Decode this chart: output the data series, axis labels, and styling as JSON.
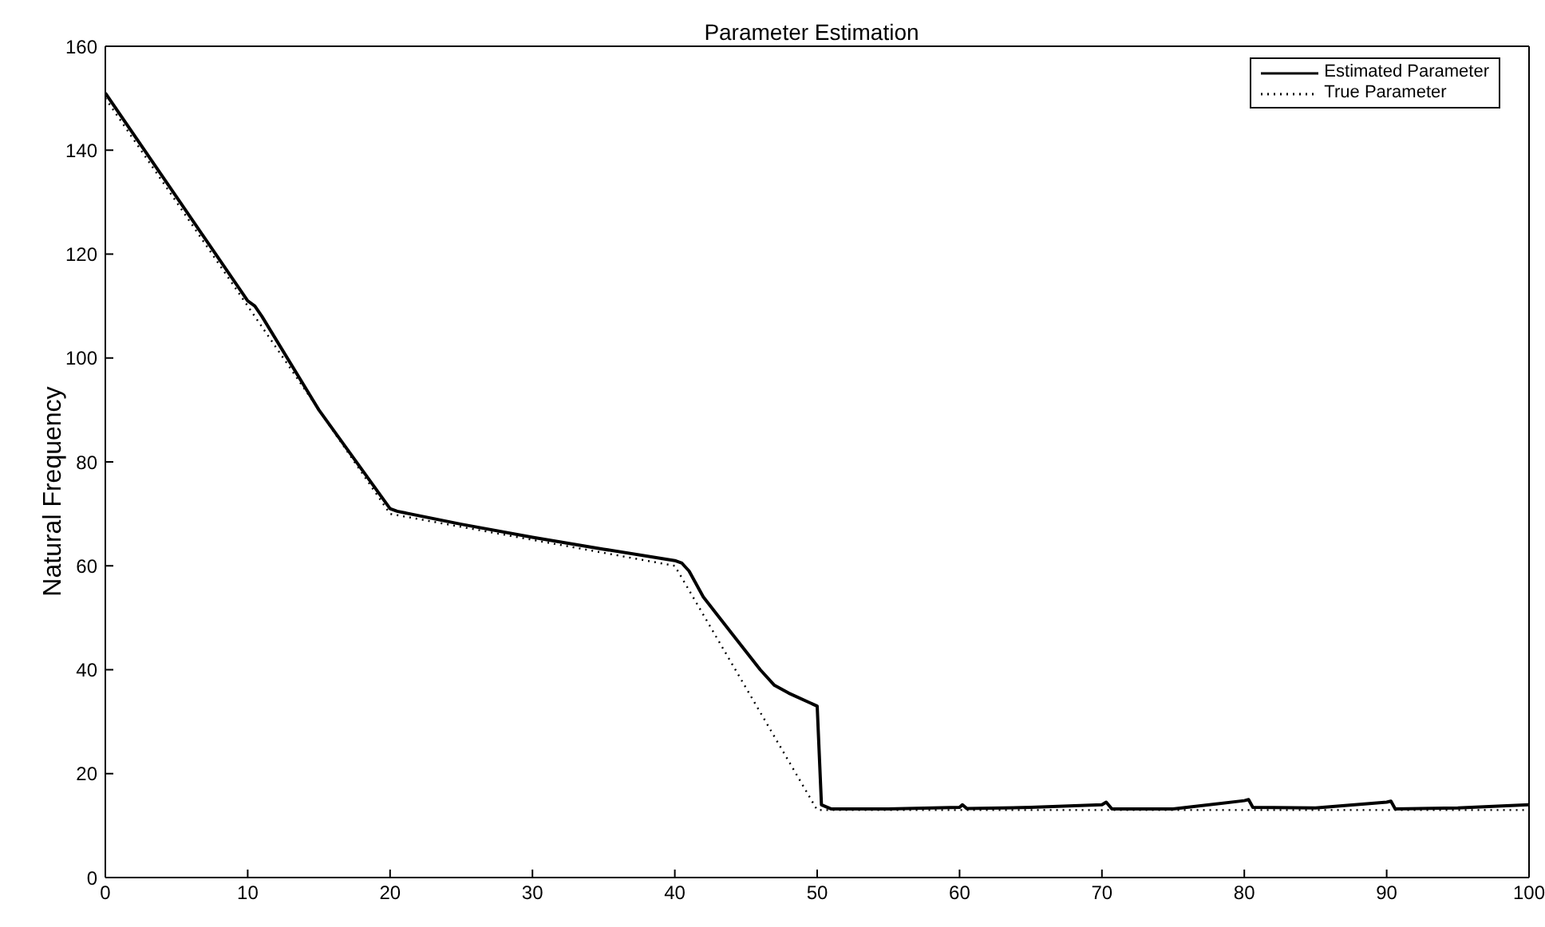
{
  "chart_data": {
    "type": "line",
    "title": "Parameter Estimation",
    "ylabel": "Natural Frequency",
    "xlim": [
      0,
      100
    ],
    "xticks": [
      0,
      10,
      20,
      30,
      40,
      50,
      60,
      70,
      80,
      90,
      100
    ],
    "ylim": [
      0,
      160
    ],
    "yticks": [
      0,
      20,
      40,
      60,
      80,
      100,
      120,
      140,
      160
    ],
    "legend": "top right",
    "marker": "none",
    "series": [
      {
        "name": "Estimated Parameter",
        "color": "#000000",
        "line_style": "solid",
        "x": [
          0,
          5,
          10,
          10.5,
          11,
          15,
          20,
          20.5,
          25,
          30,
          35,
          40,
          40.5,
          41,
          42,
          44,
          46,
          47,
          48,
          50,
          50.3,
          51,
          55,
          60,
          60.2,
          60.5,
          65,
          70,
          70.3,
          70.7,
          75,
          80,
          80.3,
          80.6,
          85,
          90,
          90.3,
          90.6,
          95,
          100
        ],
        "values": [
          151,
          131,
          111,
          110,
          108,
          90,
          71,
          70.5,
          68,
          65.5,
          63.2,
          61,
          60.5,
          59,
          54,
          47,
          40,
          37,
          35.5,
          33,
          14,
          13.2,
          13.2,
          13.5,
          14,
          13.3,
          13.5,
          14,
          14.5,
          13.2,
          13.2,
          14.8,
          15,
          13.5,
          13.4,
          14.5,
          14.7,
          13.2,
          13.4,
          14
        ]
      },
      {
        "name": "True Parameter",
        "color": "#000000",
        "line_style": "dotted",
        "x": [
          0,
          20,
          40,
          50,
          100
        ],
        "values": [
          150,
          70,
          60,
          13,
          13
        ]
      }
    ]
  }
}
